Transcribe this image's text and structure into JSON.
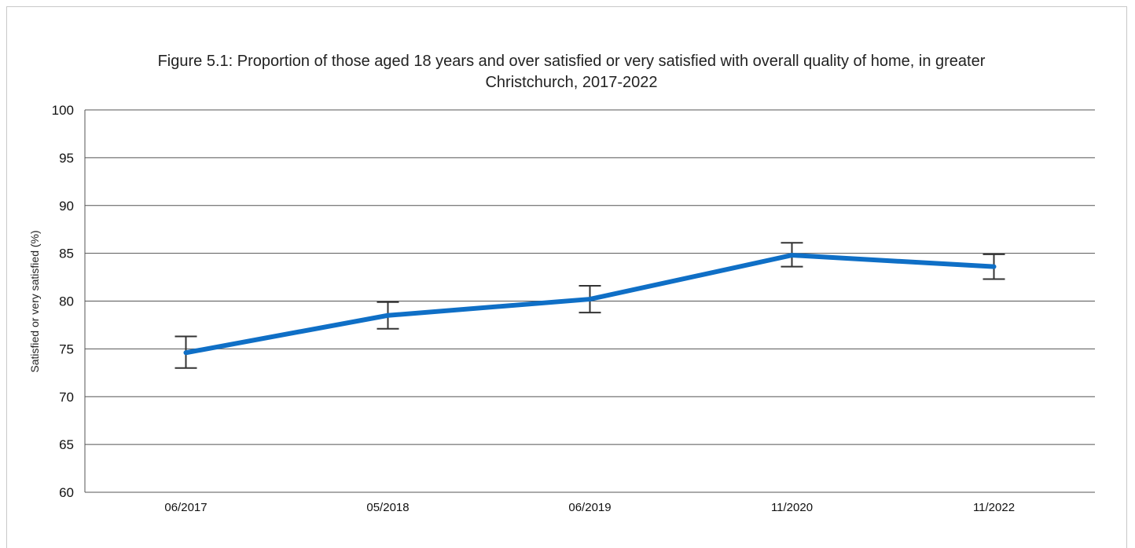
{
  "chart_data": {
    "type": "line",
    "title": "Figure 5.1: Proportion of those aged 18 years and over satisfied or very satisfied with overall quality of home, in greater Christchurch, 2017-2022",
    "title_lines": [
      "Figure 5.1: Proportion of those aged 18 years and over satisfied or very satisfied with overall quality of home, in greater",
      "Christchurch, 2017-2022"
    ],
    "xlabel": "",
    "ylabel": "Satisfied or very satisfied (%)",
    "categories": [
      "06/2017",
      "05/2018",
      "06/2019",
      "11/2020",
      "11/2022"
    ],
    "series": [
      {
        "values": [
          74.6,
          78.5,
          80.2,
          84.8,
          83.6
        ],
        "error_low": [
          73.0,
          77.1,
          78.8,
          83.6,
          82.3
        ],
        "error_high": [
          76.3,
          79.9,
          81.6,
          86.1,
          84.9
        ],
        "color": "#0f6fc6"
      }
    ],
    "ylim": [
      60,
      100
    ],
    "yticks": [
      60,
      65,
      70,
      75,
      80,
      85,
      90,
      95,
      100
    ],
    "grid": true,
    "legend": "none"
  }
}
